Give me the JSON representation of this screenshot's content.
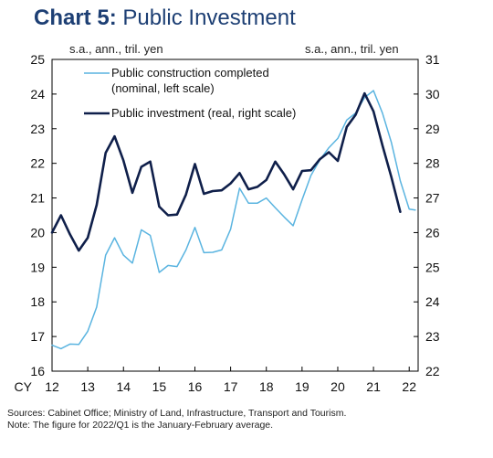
{
  "chart_data": {
    "type": "line",
    "title": "Public Investment",
    "title_prefix": "Chart 5:",
    "left_unit": "s.a., ann., tril. yen",
    "right_unit": "s.a., ann., tril. yen",
    "x_prefix": "CY",
    "x_ticks": [
      "12",
      "13",
      "14",
      "15",
      "16",
      "17",
      "18",
      "19",
      "20",
      "21",
      "22"
    ],
    "x_range": [
      2012,
      2022.25
    ],
    "y_left": {
      "range": [
        16,
        25
      ],
      "ticks": [
        "16",
        "17",
        "18",
        "19",
        "20",
        "21",
        "22",
        "23",
        "24",
        "25"
      ]
    },
    "y_right": {
      "range": [
        22,
        31
      ],
      "ticks": [
        "22",
        "23",
        "24",
        "25",
        "26",
        "27",
        "28",
        "29",
        "30",
        "31"
      ]
    },
    "grid": false,
    "legend_position": "top-left",
    "series": [
      {
        "name": "Public construction completed",
        "name_line2": "(nominal, left scale)",
        "axis": "left",
        "color": "#5ab4e0",
        "x": [
          2012.0,
          2012.25,
          2012.5,
          2012.75,
          2013.0,
          2013.25,
          2013.5,
          2013.75,
          2014.0,
          2014.25,
          2014.5,
          2014.75,
          2015.0,
          2015.25,
          2015.5,
          2015.75,
          2016.0,
          2016.25,
          2016.5,
          2016.75,
          2017.0,
          2017.25,
          2017.5,
          2017.75,
          2018.0,
          2018.25,
          2018.5,
          2018.75,
          2019.0,
          2019.25,
          2019.5,
          2019.75,
          2020.0,
          2020.25,
          2020.5,
          2020.75,
          2021.0,
          2021.25,
          2021.5,
          2021.75,
          2022.0,
          2022.17
        ],
        "values": [
          16.75,
          16.65,
          16.78,
          16.77,
          17.15,
          17.85,
          19.35,
          19.85,
          19.35,
          19.12,
          20.08,
          19.92,
          18.85,
          19.05,
          19.02,
          19.5,
          20.15,
          19.42,
          19.43,
          19.5,
          20.1,
          21.28,
          20.85,
          20.85,
          21.0,
          20.72,
          20.45,
          20.2,
          20.95,
          21.65,
          22.1,
          22.45,
          22.72,
          23.25,
          23.45,
          23.9,
          24.1,
          23.45,
          22.6,
          21.5,
          20.68,
          20.65
        ]
      },
      {
        "name": "Public investment (real, right scale)",
        "axis": "right",
        "color": "#0f1f4a",
        "x": [
          2012.0,
          2012.25,
          2012.5,
          2012.75,
          2013.0,
          2013.25,
          2013.5,
          2013.75,
          2014.0,
          2014.25,
          2014.5,
          2014.75,
          2015.0,
          2015.25,
          2015.5,
          2015.75,
          2016.0,
          2016.25,
          2016.5,
          2016.75,
          2017.0,
          2017.25,
          2017.5,
          2017.75,
          2018.0,
          2018.25,
          2018.5,
          2018.75,
          2019.0,
          2019.25,
          2019.5,
          2019.75,
          2020.0,
          2020.25,
          2020.5,
          2020.75,
          2021.0,
          2021.25,
          2021.5,
          2021.75
        ],
        "values": [
          26.0,
          26.5,
          25.95,
          25.48,
          25.85,
          26.8,
          28.3,
          28.78,
          28.08,
          27.15,
          27.9,
          28.05,
          26.75,
          26.5,
          26.52,
          27.1,
          27.98,
          27.12,
          27.2,
          27.22,
          27.42,
          27.72,
          27.25,
          27.32,
          27.52,
          28.05,
          27.68,
          27.25,
          27.78,
          27.8,
          28.12,
          28.32,
          28.07,
          29.05,
          29.4,
          30.02,
          29.5,
          28.52,
          27.6,
          26.6
        ]
      }
    ]
  },
  "footnotes": {
    "sources": "Sources: Cabinet Office; Ministry of Land, Infrastructure, Transport and Tourism.",
    "note": "Note: The figure for 2022/Q1 is the January-February average."
  }
}
